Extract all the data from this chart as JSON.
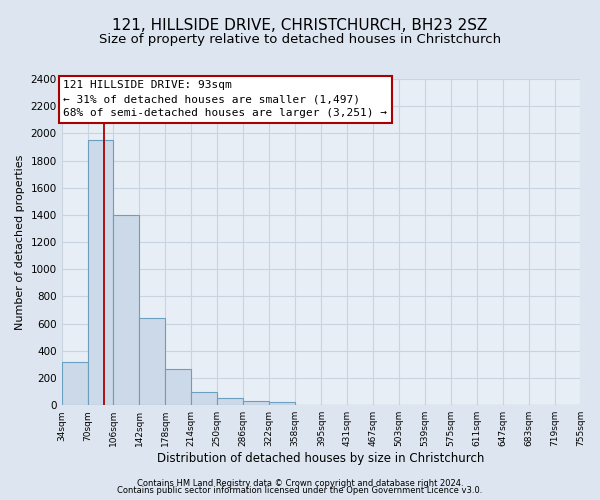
{
  "title": "121, HILLSIDE DRIVE, CHRISTCHURCH, BH23 2SZ",
  "subtitle": "Size of property relative to detached houses in Christchurch",
  "xlabel": "Distribution of detached houses by size in Christchurch",
  "ylabel": "Number of detached properties",
  "bar_edges": [
    34,
    70,
    106,
    142,
    178,
    214,
    250,
    286,
    322,
    358,
    395,
    431,
    467,
    503,
    539,
    575,
    611,
    647,
    683,
    719,
    755
  ],
  "bar_heights": [
    320,
    1950,
    1400,
    645,
    270,
    100,
    50,
    30,
    20,
    0,
    0,
    0,
    0,
    0,
    0,
    0,
    0,
    0,
    0,
    0
  ],
  "bar_color": "#ccd9e8",
  "bar_edge_color": "#6a9fc0",
  "property_line_x": 93,
  "property_line_color": "#aa0000",
  "annotation_title": "121 HILLSIDE DRIVE: 93sqm",
  "annotation_line1": "← 31% of detached houses are smaller (1,497)",
  "annotation_line2": "68% of semi-detached houses are larger (3,251) →",
  "annotation_box_color": "#ffffff",
  "annotation_box_edge": "#aa0000",
  "ylim": [
    0,
    2400
  ],
  "yticks": [
    0,
    200,
    400,
    600,
    800,
    1000,
    1200,
    1400,
    1600,
    1800,
    2000,
    2200,
    2400
  ],
  "xtick_labels": [
    "34sqm",
    "70sqm",
    "106sqm",
    "142sqm",
    "178sqm",
    "214sqm",
    "250sqm",
    "286sqm",
    "322sqm",
    "358sqm",
    "395sqm",
    "431sqm",
    "467sqm",
    "503sqm",
    "539sqm",
    "575sqm",
    "611sqm",
    "647sqm",
    "683sqm",
    "719sqm",
    "755sqm"
  ],
  "footer1": "Contains HM Land Registry data © Crown copyright and database right 2024.",
  "footer2": "Contains public sector information licensed under the Open Government Licence v3.0.",
  "bg_color": "#dde6f0",
  "plot_bg_color": "#e8eef5",
  "grid_color": "#c8d4e0",
  "title_fontsize": 11,
  "subtitle_fontsize": 9.5
}
